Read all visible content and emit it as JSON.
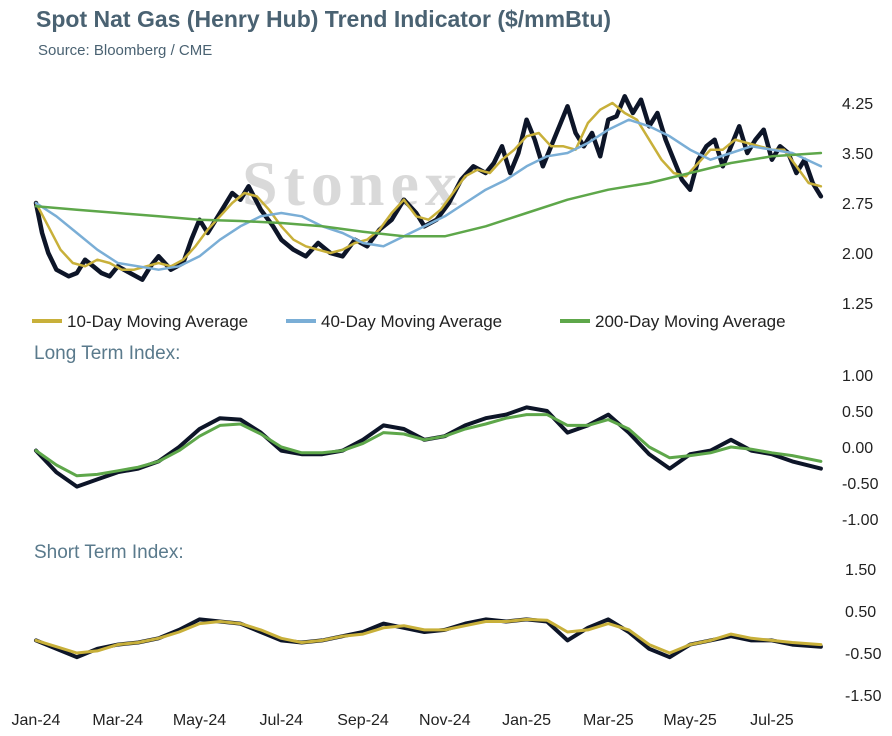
{
  "header": {
    "title": "Spot Nat Gas (Henry Hub) Trend Indicator ($/mmBtu)",
    "source": "Source: Bloomberg / CME",
    "watermark": "Stonex"
  },
  "colors": {
    "price": "#0d1528",
    "ma10": "#c8b03a",
    "ma40": "#7aaed6",
    "ma200": "#5ea74a",
    "long_index_a": "#0d1528",
    "long_index_b": "#5ea74a",
    "short_index_a": "#0d1528",
    "short_index_b": "#c8b03a",
    "title": "#4a6272"
  },
  "chart_data": [
    {
      "id": "price",
      "type": "line",
      "title": "Spot Nat Gas (Henry Hub) Trend Indicator ($/mmBtu)",
      "ylim": [
        1.25,
        4.25
      ],
      "yticks": [
        "4.25",
        "3.50",
        "2.75",
        "2.00",
        "1.25"
      ],
      "x_labels": [
        "Jan-24",
        "Mar-24",
        "May-24",
        "Jul-24",
        "Sep-24",
        "Nov-24",
        "Jan-25",
        "Mar-25",
        "May-25",
        "Jul-25"
      ],
      "x_range_months": [
        0,
        19.3
      ],
      "grid": false,
      "legend": "bottom",
      "series": [
        {
          "key": "price",
          "x": [
            0,
            0.15,
            0.3,
            0.5,
            0.8,
            1.0,
            1.2,
            1.4,
            1.6,
            1.8,
            2.0,
            2.3,
            2.6,
            2.8,
            3.0,
            3.3,
            3.6,
            3.8,
            4.0,
            4.2,
            4.4,
            4.6,
            4.8,
            5.0,
            5.2,
            5.5,
            5.8,
            6.0,
            6.3,
            6.6,
            6.9,
            7.2,
            7.5,
            7.8,
            8.1,
            8.4,
            8.7,
            9.0,
            9.3,
            9.5,
            9.8,
            10.1,
            10.4,
            10.7,
            11.0,
            11.2,
            11.4,
            11.6,
            11.8,
            12.0,
            12.2,
            12.4,
            12.6,
            12.8,
            13.0,
            13.2,
            13.4,
            13.6,
            13.8,
            14.0,
            14.2,
            14.4,
            14.6,
            14.8,
            15.0,
            15.2,
            15.4,
            15.6,
            15.8,
            16.0,
            16.2,
            16.4,
            16.6,
            16.8,
            17.0,
            17.2,
            17.4,
            17.6,
            17.8,
            18.0,
            18.2,
            18.4,
            18.6,
            18.8,
            19.0,
            19.2
          ],
          "values": [
            2.75,
            2.3,
            2.0,
            1.75,
            1.65,
            1.7,
            1.9,
            1.8,
            1.7,
            1.65,
            1.8,
            1.7,
            1.6,
            1.8,
            1.95,
            1.75,
            1.85,
            2.2,
            2.5,
            2.3,
            2.5,
            2.7,
            2.9,
            2.8,
            3.0,
            2.65,
            2.4,
            2.2,
            2.05,
            1.95,
            2.15,
            2.0,
            1.95,
            2.2,
            2.1,
            2.35,
            2.5,
            2.8,
            2.6,
            2.4,
            2.5,
            2.75,
            3.1,
            3.3,
            3.2,
            3.35,
            3.6,
            3.2,
            3.5,
            4.0,
            3.7,
            3.3,
            3.6,
            3.9,
            4.2,
            3.8,
            3.6,
            3.8,
            3.45,
            4.0,
            4.05,
            4.35,
            4.1,
            4.3,
            3.9,
            4.1,
            3.7,
            3.4,
            3.1,
            2.95,
            3.4,
            3.6,
            3.7,
            3.3,
            3.6,
            3.9,
            3.5,
            3.7,
            3.85,
            3.4,
            3.6,
            3.5,
            3.2,
            3.4,
            3.05,
            2.85
          ]
        },
        {
          "key": "ma10",
          "name": "10-Day Moving Average",
          "x": [
            0,
            0.3,
            0.6,
            0.9,
            1.2,
            1.5,
            1.8,
            2.1,
            2.4,
            2.7,
            3.0,
            3.3,
            3.6,
            3.9,
            4.2,
            4.5,
            4.8,
            5.1,
            5.4,
            5.7,
            6.0,
            6.3,
            6.6,
            6.9,
            7.2,
            7.5,
            7.8,
            8.1,
            8.4,
            8.7,
            9.0,
            9.3,
            9.6,
            9.9,
            10.2,
            10.5,
            10.8,
            11.1,
            11.4,
            11.7,
            12.0,
            12.3,
            12.6,
            12.9,
            13.2,
            13.5,
            13.8,
            14.1,
            14.4,
            14.7,
            15.0,
            15.3,
            15.6,
            15.9,
            16.2,
            16.5,
            16.8,
            17.1,
            17.4,
            17.7,
            18.0,
            18.3,
            18.6,
            18.9,
            19.2
          ],
          "values": [
            2.75,
            2.4,
            2.05,
            1.85,
            1.8,
            1.9,
            1.85,
            1.75,
            1.75,
            1.8,
            1.85,
            1.8,
            1.9,
            2.1,
            2.35,
            2.55,
            2.75,
            2.9,
            2.85,
            2.65,
            2.4,
            2.2,
            2.1,
            2.05,
            2.0,
            2.05,
            2.15,
            2.2,
            2.35,
            2.6,
            2.8,
            2.55,
            2.5,
            2.65,
            2.9,
            3.15,
            3.25,
            3.2,
            3.4,
            3.55,
            3.75,
            3.8,
            3.6,
            3.6,
            3.55,
            3.95,
            4.15,
            4.25,
            4.1,
            4.0,
            3.7,
            3.4,
            3.2,
            3.15,
            3.35,
            3.55,
            3.55,
            3.7,
            3.65,
            3.6,
            3.55,
            3.55,
            3.3,
            3.05,
            3.0
          ]
        },
        {
          "key": "ma40",
          "name": "40-Day Moving Average",
          "x": [
            0,
            0.5,
            1.0,
            1.5,
            2.0,
            2.5,
            3.0,
            3.5,
            4.0,
            4.5,
            5.0,
            5.5,
            6.0,
            6.5,
            7.0,
            7.5,
            8.0,
            8.5,
            9.0,
            9.5,
            10.0,
            10.5,
            11.0,
            11.5,
            12.0,
            12.5,
            13.0,
            13.5,
            14.0,
            14.5,
            15.0,
            15.5,
            16.0,
            16.5,
            17.0,
            17.5,
            18.0,
            18.5,
            19.2
          ],
          "values": [
            2.75,
            2.55,
            2.3,
            2.05,
            1.85,
            1.8,
            1.75,
            1.8,
            1.95,
            2.2,
            2.4,
            2.55,
            2.6,
            2.55,
            2.4,
            2.3,
            2.15,
            2.1,
            2.25,
            2.4,
            2.55,
            2.75,
            2.95,
            3.1,
            3.3,
            3.45,
            3.5,
            3.65,
            3.85,
            4.0,
            3.9,
            3.75,
            3.55,
            3.4,
            3.5,
            3.6,
            3.55,
            3.5,
            3.3
          ]
        },
        {
          "key": "ma200",
          "name": "200-Day Moving Average",
          "x": [
            0,
            1,
            2,
            3,
            4,
            5,
            6,
            7,
            8,
            9,
            10,
            11,
            12,
            13,
            14,
            15,
            16,
            17,
            18,
            19.2
          ],
          "values": [
            2.7,
            2.65,
            2.6,
            2.55,
            2.5,
            2.48,
            2.45,
            2.4,
            2.32,
            2.25,
            2.25,
            2.4,
            2.6,
            2.8,
            2.95,
            3.05,
            3.2,
            3.35,
            3.45,
            3.5
          ]
        }
      ]
    },
    {
      "id": "long",
      "type": "line",
      "title": "Long Term Index:",
      "ylim": [
        -1.0,
        1.0
      ],
      "yticks": [
        "1.00",
        "0.50",
        "0.00",
        "-0.50",
        "-1.00"
      ],
      "series": [
        {
          "key": "long_index_a",
          "x": [
            0,
            0.5,
            1.0,
            1.5,
            2.0,
            2.5,
            3.0,
            3.5,
            4.0,
            4.5,
            5.0,
            5.5,
            6.0,
            6.5,
            7.0,
            7.5,
            8.0,
            8.5,
            9.0,
            9.5,
            10.0,
            10.5,
            11.0,
            11.5,
            12.0,
            12.5,
            13.0,
            13.5,
            14.0,
            14.5,
            15.0,
            15.5,
            16.0,
            16.5,
            17.0,
            17.5,
            18.0,
            18.5,
            19.2
          ],
          "values": [
            -0.05,
            -0.35,
            -0.55,
            -0.45,
            -0.35,
            -0.3,
            -0.2,
            0.0,
            0.25,
            0.4,
            0.38,
            0.2,
            -0.05,
            -0.1,
            -0.1,
            -0.05,
            0.1,
            0.3,
            0.25,
            0.1,
            0.15,
            0.3,
            0.4,
            0.45,
            0.55,
            0.5,
            0.2,
            0.3,
            0.45,
            0.2,
            -0.1,
            -0.3,
            -0.1,
            -0.05,
            0.1,
            -0.05,
            -0.1,
            -0.2,
            -0.3
          ]
        },
        {
          "key": "long_index_b",
          "x": [
            0,
            0.5,
            1.0,
            1.5,
            2.0,
            2.5,
            3.0,
            3.5,
            4.0,
            4.5,
            5.0,
            5.5,
            6.0,
            6.5,
            7.0,
            7.5,
            8.0,
            8.5,
            9.0,
            9.5,
            10.0,
            10.5,
            11.0,
            11.5,
            12.0,
            12.5,
            13.0,
            13.5,
            14.0,
            14.5,
            15.0,
            15.5,
            16.0,
            16.5,
            17.0,
            17.5,
            18.0,
            18.5,
            19.2
          ],
          "values": [
            -0.05,
            -0.25,
            -0.4,
            -0.38,
            -0.33,
            -0.28,
            -0.2,
            -0.05,
            0.15,
            0.3,
            0.32,
            0.18,
            0.0,
            -0.08,
            -0.08,
            -0.05,
            0.05,
            0.2,
            0.18,
            0.1,
            0.15,
            0.25,
            0.32,
            0.4,
            0.45,
            0.45,
            0.3,
            0.3,
            0.38,
            0.25,
            0.0,
            -0.15,
            -0.12,
            -0.08,
            0.0,
            -0.03,
            -0.08,
            -0.12,
            -0.2
          ]
        }
      ]
    },
    {
      "id": "short",
      "type": "line",
      "title": "Short Term Index:",
      "ylim": [
        -1.5,
        1.5
      ],
      "yticks": [
        "1.50",
        "0.50",
        "-0.50",
        "-1.50"
      ],
      "series": [
        {
          "key": "short_index_a",
          "x": [
            0,
            0.5,
            1.0,
            1.5,
            2.0,
            2.5,
            3.0,
            3.5,
            4.0,
            4.5,
            5.0,
            5.5,
            6.0,
            6.5,
            7.0,
            7.5,
            8.0,
            8.5,
            9.0,
            9.5,
            10.0,
            10.5,
            11.0,
            11.5,
            12.0,
            12.5,
            13.0,
            13.5,
            14.0,
            14.5,
            15.0,
            15.5,
            16.0,
            16.5,
            17.0,
            17.5,
            18.0,
            18.5,
            19.2
          ],
          "values": [
            -0.2,
            -0.4,
            -0.6,
            -0.4,
            -0.3,
            -0.25,
            -0.15,
            0.05,
            0.3,
            0.25,
            0.2,
            0.0,
            -0.2,
            -0.25,
            -0.2,
            -0.1,
            0.0,
            0.2,
            0.1,
            0.0,
            0.05,
            0.2,
            0.3,
            0.25,
            0.3,
            0.25,
            -0.2,
            0.1,
            0.3,
            0.0,
            -0.4,
            -0.6,
            -0.3,
            -0.2,
            -0.1,
            -0.2,
            -0.2,
            -0.3,
            -0.35
          ]
        },
        {
          "key": "short_index_b",
          "x": [
            0,
            0.5,
            1.0,
            1.5,
            2.0,
            2.5,
            3.0,
            3.5,
            4.0,
            4.5,
            5.0,
            5.5,
            6.0,
            6.5,
            7.0,
            7.5,
            8.0,
            8.5,
            9.0,
            9.5,
            10.0,
            10.5,
            11.0,
            11.5,
            12.0,
            12.5,
            13.0,
            13.5,
            14.0,
            14.5,
            15.0,
            15.5,
            16.0,
            16.5,
            17.0,
            17.5,
            18.0,
            18.5,
            19.2
          ],
          "values": [
            -0.2,
            -0.35,
            -0.5,
            -0.45,
            -0.3,
            -0.25,
            -0.15,
            0.0,
            0.2,
            0.25,
            0.2,
            0.05,
            -0.15,
            -0.25,
            -0.2,
            -0.1,
            -0.05,
            0.1,
            0.15,
            0.05,
            0.05,
            0.15,
            0.25,
            0.25,
            0.3,
            0.28,
            0.0,
            0.05,
            0.2,
            0.05,
            -0.3,
            -0.5,
            -0.3,
            -0.2,
            -0.05,
            -0.15,
            -0.2,
            -0.25,
            -0.3
          ]
        }
      ]
    }
  ]
}
